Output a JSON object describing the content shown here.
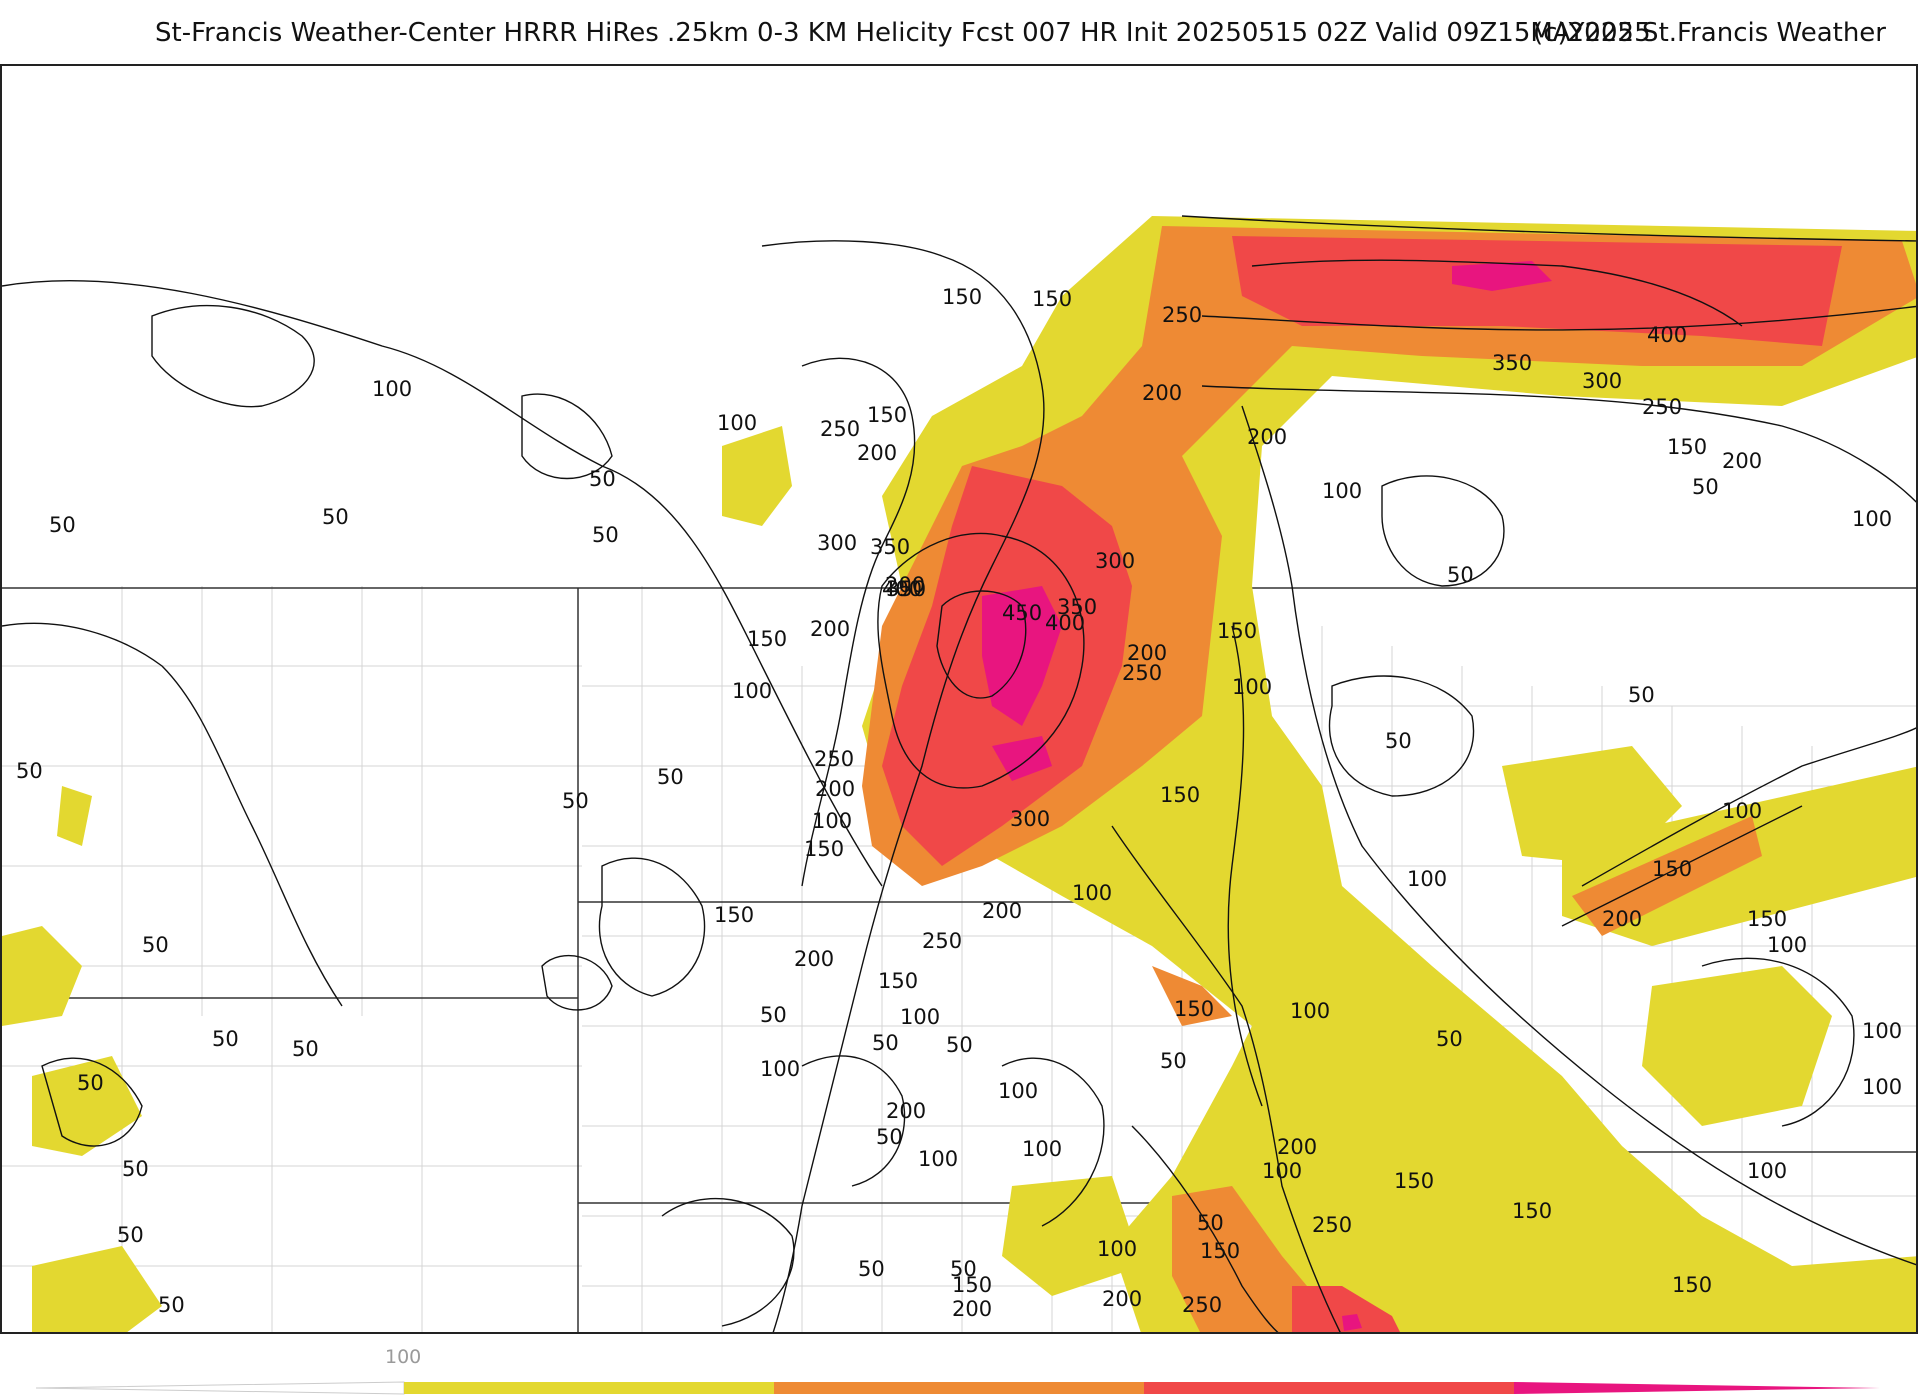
{
  "header": {
    "title": "St-Francis Weather-Center HRRR HiRes .25km 0-3 KM Helicity Fcst 007 HR Init 20250515 02Z  Valid 09Z15MAY2025",
    "credit": "(c)2025 St.Francis Weather"
  },
  "colors": {
    "band_100_150": "#e3d830",
    "band_150_200": "#e3d830",
    "band_200_250": "#ee8a34",
    "band_250_300": "#ee8a34",
    "band_300_400": "#f04848",
    "band_400_plus": "#e8157f",
    "contour": "#111111",
    "boundary": "#222222",
    "county": "#c8c8c8"
  },
  "legend": {
    "tick_label": "100",
    "segments": [
      "#e3d830",
      "#ee8a34",
      "#f04848",
      "#e8157f"
    ]
  },
  "contour_labels": [
    "50",
    "100",
    "150",
    "200",
    "250",
    "300",
    "350",
    "400",
    "450"
  ]
}
